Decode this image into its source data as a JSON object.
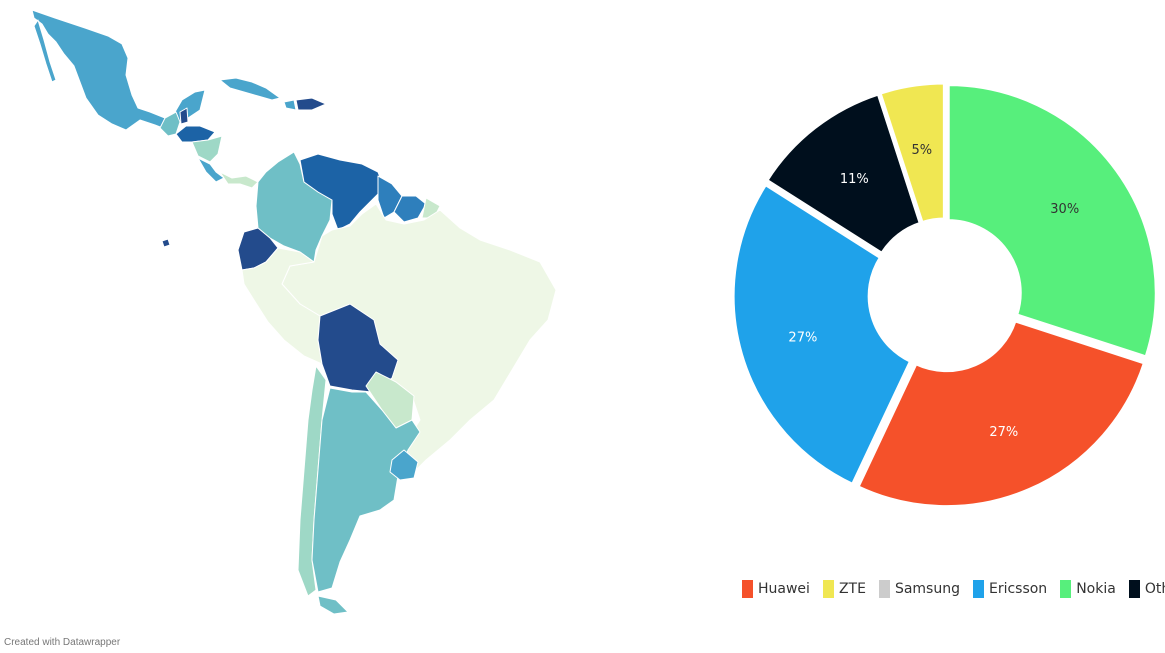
{
  "colors": {
    "map_light": "#eef7e6",
    "map_pale": "#c8e8cc",
    "map_mint": "#9ed8c6",
    "map_teal": "#6fbfc6",
    "map_blue": "#4aa5cc",
    "map_mid": "#2e7fbc",
    "map_deep": "#1c63a6",
    "map_navy": "#234b8c",
    "map_border": "#ffffff"
  },
  "chart_data": {
    "type": "pie",
    "style": "donut",
    "categories": [
      "Huawei",
      "ZTE",
      "Samsung",
      "Ericsson",
      "Nokia",
      "Others"
    ],
    "values": [
      27,
      5,
      0,
      27,
      30,
      11
    ],
    "value_labels": [
      "27%",
      "5%",
      "",
      "27%",
      "30%",
      "11%"
    ],
    "colors": [
      "#f5512a",
      "#f0e752",
      "#cccccc",
      "#1fa2ea",
      "#57ef7c",
      "#000f1d"
    ],
    "label_colors": [
      "#ffffff",
      "#333333",
      "#333333",
      "#ffffff",
      "#333333",
      "#ffffff"
    ],
    "slice_order": [
      "Nokia",
      "Huawei",
      "Ericsson",
      "Others",
      "ZTE"
    ],
    "legend_position": "bottom"
  },
  "credit": "Created with Datawrapper"
}
